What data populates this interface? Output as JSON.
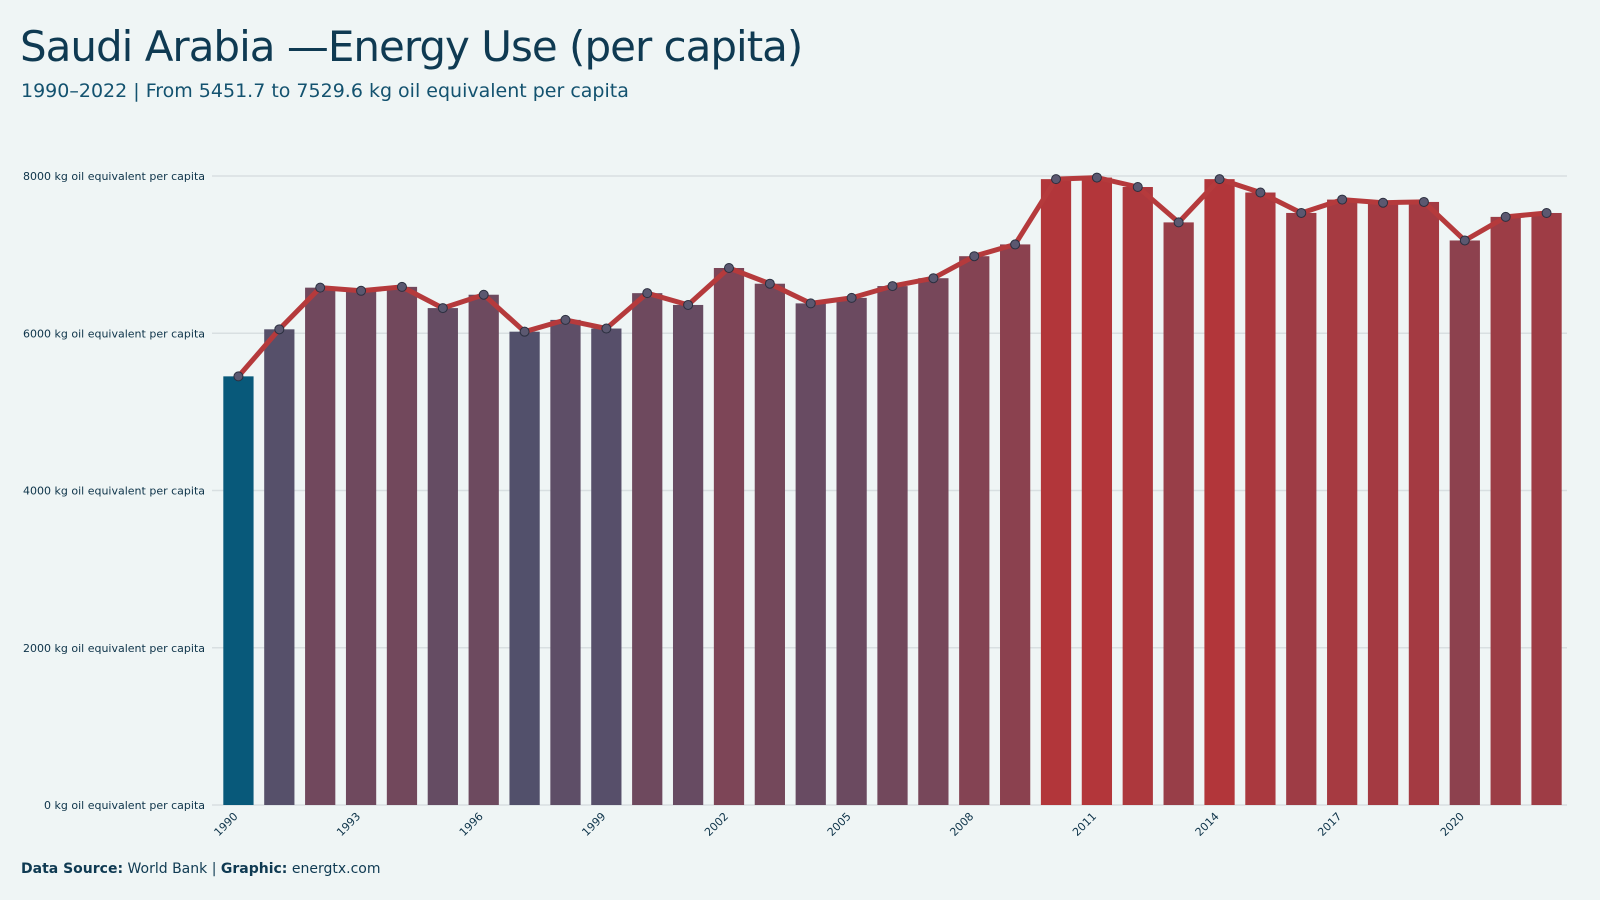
{
  "header": {
    "title": "Saudi Arabia —Energy Use (per capita)",
    "subtitle": "1990–2022 | From 5451.7  to 7529.6  kg oil equivalent per capita"
  },
  "footer": {
    "source_label": "Data Source:",
    "source_value": "World Bank",
    "separator": "|",
    "graphic_label": "Graphic:",
    "graphic_value": "energtx.com"
  },
  "colors": {
    "low": "#08597a",
    "mid": "#5a4f69",
    "high": "#b3363a",
    "line": "#b53a3c",
    "point_fill": "#5b5870",
    "grid": "#d8dfe1"
  },
  "chart_data": {
    "type": "bar",
    "overlay": "line",
    "title": "Saudi Arabia —Energy Use (per capita)",
    "unit": "kg oil equivalent per capita",
    "ylim": [
      0,
      8000
    ],
    "y_ticks": [
      0,
      2000,
      4000,
      6000,
      8000
    ],
    "y_tick_labels": [
      "0 kg oil equivalent per capita",
      "2000 kg oil equivalent per capita",
      "4000 kg oil equivalent per capita",
      "6000 kg oil equivalent per capita",
      "8000 kg oil equivalent per capita"
    ],
    "x_tick_labels": [
      "1990",
      "1993",
      "1996",
      "1999",
      "2002",
      "2005",
      "2008",
      "2011",
      "2014",
      "2017",
      "2020"
    ],
    "grid": true,
    "legend": "none",
    "categories": [
      1990,
      1991,
      1992,
      1993,
      1994,
      1995,
      1996,
      1997,
      1998,
      1999,
      2000,
      2001,
      2002,
      2003,
      2004,
      2005,
      2006,
      2007,
      2008,
      2009,
      2010,
      2011,
      2012,
      2013,
      2014,
      2015,
      2016,
      2017,
      2018,
      2019,
      2020,
      2021,
      2022
    ],
    "values": [
      5451.7,
      6050,
      6580,
      6540,
      6590,
      6320,
      6490,
      6020,
      6170,
      6060,
      6510,
      6360,
      6830,
      6630,
      6380,
      6450,
      6600,
      6700,
      6980,
      7130,
      7960,
      7980,
      7860,
      7410,
      7960,
      7790,
      7530,
      7700,
      7660,
      7670,
      7180,
      7480,
      7529.6
    ]
  }
}
